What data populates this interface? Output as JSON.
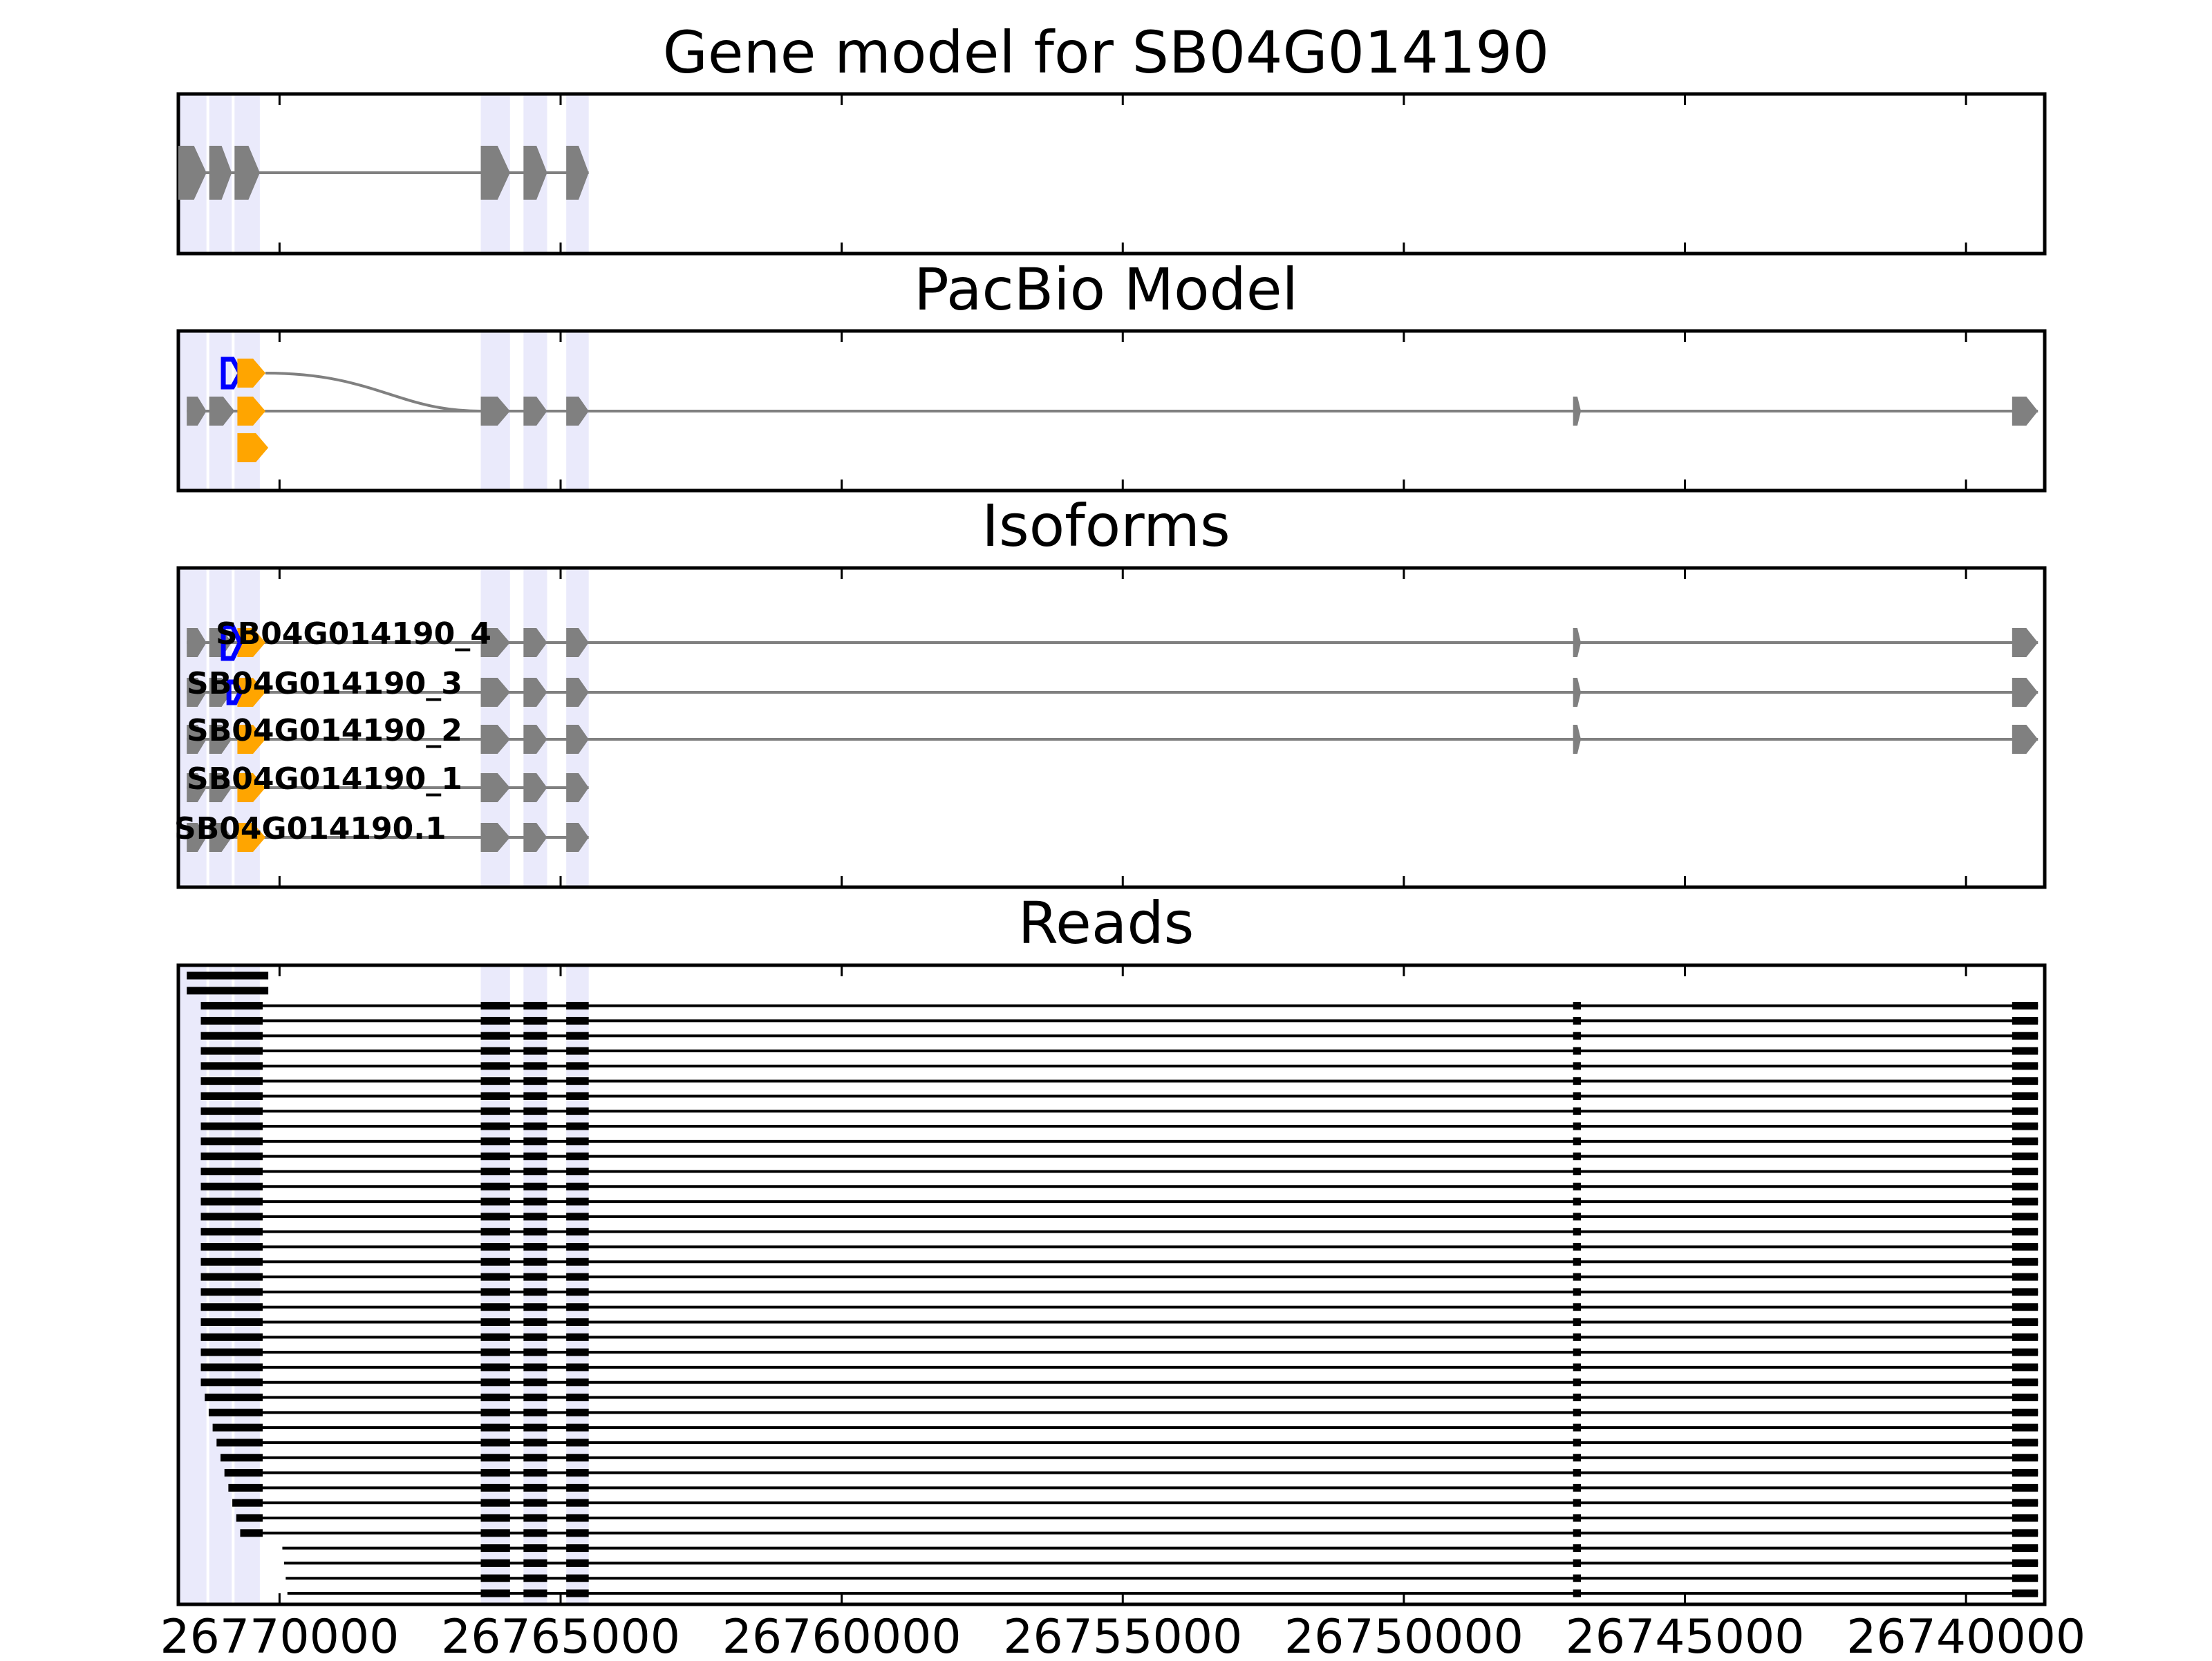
{
  "figure": {
    "title": "Gene model for SB04G014190",
    "genomic_range": [
      26771800,
      26738600
    ],
    "x_ticks": [
      {
        "pos": 26770000,
        "label": "26770000"
      },
      {
        "pos": 26765000,
        "label": "26765000"
      },
      {
        "pos": 26760000,
        "label": "26760000"
      },
      {
        "pos": 26755000,
        "label": "26755000"
      },
      {
        "pos": 26750000,
        "label": "26750000"
      },
      {
        "pos": 26745000,
        "label": "26745000"
      },
      {
        "pos": 26740000,
        "label": "26740000"
      }
    ],
    "colors": {
      "exon": "#808080",
      "intron": "#808080",
      "highlight": "#e6e6fa",
      "utr_orange": "#ffa500",
      "cds_blue": "#0000ff",
      "read": "#000000"
    }
  },
  "panels": {
    "gene_model": {
      "title": ""
    },
    "pacbio": {
      "title": "PacBio Model"
    },
    "isoforms": {
      "title": "Isoforms",
      "labels": [
        "SB04G014190_4",
        "SB04G014190_3",
        "SB04G014190_2",
        "SB04G014190_1",
        "SB04G014190.1"
      ]
    },
    "reads": {
      "title": "Reads",
      "read_count": 42
    }
  },
  "chart_data": {
    "type": "gene_track",
    "title": "Gene model for SB04G014190",
    "x_axis_ticks": [
      "26770000",
      "26765000",
      "26760000",
      "26755000",
      "26750000",
      "26745000",
      "26740000"
    ],
    "exons_main": [
      [
        26771800,
        26771300
      ],
      [
        26771250,
        26770850
      ],
      [
        26770800,
        26770350
      ],
      [
        26766420,
        26765900
      ],
      [
        26765660,
        26765240
      ],
      [
        26764900,
        26764500
      ]
    ],
    "exons_extended": [
      [
        26766420,
        26765900
      ],
      [
        26765660,
        26765240
      ],
      [
        26764900,
        26764500
      ],
      [
        26746990,
        26746850
      ],
      [
        26739180,
        26738720
      ]
    ],
    "highlight_regions": [
      [
        26771800,
        26771300
      ],
      [
        26771250,
        26770850
      ],
      [
        26770800,
        26770350
      ],
      [
        26766420,
        26765900
      ],
      [
        26765660,
        26765240
      ],
      [
        26764900,
        26764500
      ]
    ],
    "tracks": {
      "gene_model": {
        "transcripts": [
          {
            "exons": [
              [
                26771800,
                26771300
              ],
              [
                26771250,
                26770850
              ],
              [
                26770800,
                26770350
              ],
              [
                26766420,
                26765900
              ],
              [
                26765660,
                26765240
              ],
              [
                26764900,
                26764500
              ]
            ]
          }
        ]
      },
      "pacbio": {
        "transcripts": [
          {
            "start": 26771000,
            "end": 26770200,
            "cds_blue": [
              26771000,
              26770700
            ],
            "orange": [
              26770750,
              26770250
            ],
            "joins_main": true
          },
          {
            "exons_full": true,
            "orange": [
              26770750,
              26770250
            ]
          },
          {
            "orange_only": [
              26770750,
              26770200
            ]
          }
        ]
      },
      "isoforms": [
        {
          "label": "SB04G014190_4",
          "blue": true,
          "long": true
        },
        {
          "label": "SB04G014190_3",
          "blue_outline": true,
          "long": true
        },
        {
          "label": "SB04G014190_2",
          "long": true
        },
        {
          "label": "SB04G014190_1",
          "long": false,
          "stub": true
        },
        {
          "label": "SB04G014190.1",
          "long": false
        }
      ],
      "reads": {
        "count": 42,
        "full_length_reads": 38,
        "first_exon_end": 26770200
      }
    }
  }
}
